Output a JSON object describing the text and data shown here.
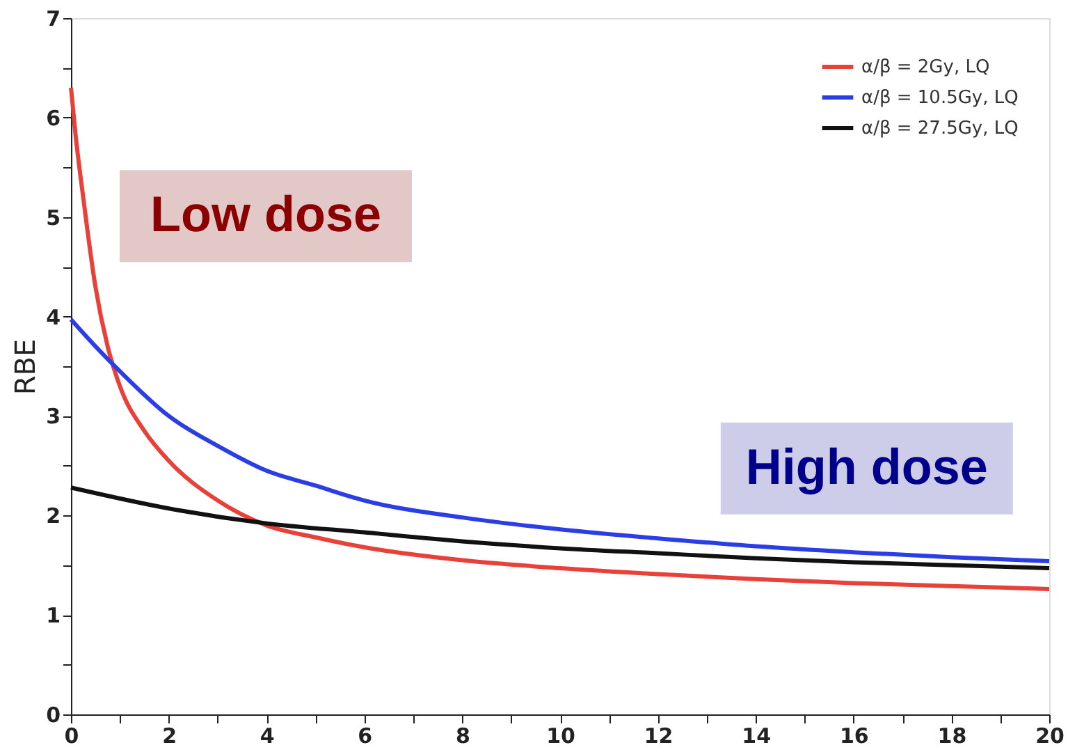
{
  "chart_data": {
    "type": "line",
    "ylabel": "RBE",
    "xlim": [
      0,
      20
    ],
    "ylim": [
      0,
      7
    ],
    "xticks": [
      0,
      {
        "value": 1,
        "label": null
      },
      2,
      {
        "value": 3,
        "label": null
      },
      4,
      {
        "value": 5,
        "label": null
      },
      6,
      {
        "value": 7,
        "label": null
      },
      8,
      {
        "value": 9,
        "label": null
      },
      10,
      {
        "value": 11,
        "label": null
      },
      12,
      {
        "value": 13,
        "label": null
      },
      14,
      {
        "value": 15,
        "label": null
      },
      16,
      {
        "value": 17,
        "label": null
      },
      18,
      {
        "value": 19,
        "label": null
      },
      20
    ],
    "yticks": [
      0,
      {
        "value": 0.5,
        "label": null
      },
      1,
      {
        "value": 1.5,
        "label": null
      },
      2,
      {
        "value": 2.5,
        "label": null
      },
      3,
      {
        "value": 3.5,
        "label": null
      },
      4,
      {
        "value": 4.5,
        "label": null
      },
      5,
      {
        "value": 5.5,
        "label": null
      },
      6,
      {
        "value": 6.5,
        "label": null
      },
      7
    ],
    "grid": false,
    "legend": "top right",
    "marker": "none",
    "line_style": "solid",
    "annotations": [
      "Low dose",
      "High dose"
    ],
    "series": [
      {
        "name": "α/β = 2Gy, LQ",
        "color": "#e8413a",
        "x": [
          0,
          0.1,
          0.25,
          0.5,
          0.75,
          1,
          1.5,
          2,
          3,
          4,
          5,
          6,
          8,
          10,
          12,
          14,
          16,
          18,
          20
        ],
        "values": [
          6.3,
          5.8,
          5.2,
          4.3,
          3.7,
          3.3,
          2.85,
          2.55,
          2.15,
          1.9,
          1.78,
          1.68,
          1.55,
          1.47,
          1.41,
          1.36,
          1.32,
          1.29,
          1.26
        ]
      },
      {
        "name": "α/β = 10.5Gy, LQ",
        "color": "#2b3ee6",
        "x": [
          0,
          0.5,
          1,
          2,
          3,
          4,
          5,
          6,
          8,
          10,
          12,
          14,
          16,
          18,
          20
        ],
        "values": [
          3.97,
          3.7,
          3.45,
          3.0,
          2.7,
          2.45,
          2.3,
          2.15,
          1.98,
          1.86,
          1.77,
          1.69,
          1.63,
          1.58,
          1.54
        ]
      },
      {
        "name": "α/β = 27.5Gy, LQ",
        "color": "#111111",
        "x": [
          0,
          2,
          4,
          6,
          8,
          10,
          12,
          14,
          16,
          18,
          20
        ],
        "values": [
          2.28,
          2.07,
          1.92,
          1.83,
          1.74,
          1.67,
          1.62,
          1.57,
          1.53,
          1.5,
          1.47
        ]
      }
    ]
  }
}
